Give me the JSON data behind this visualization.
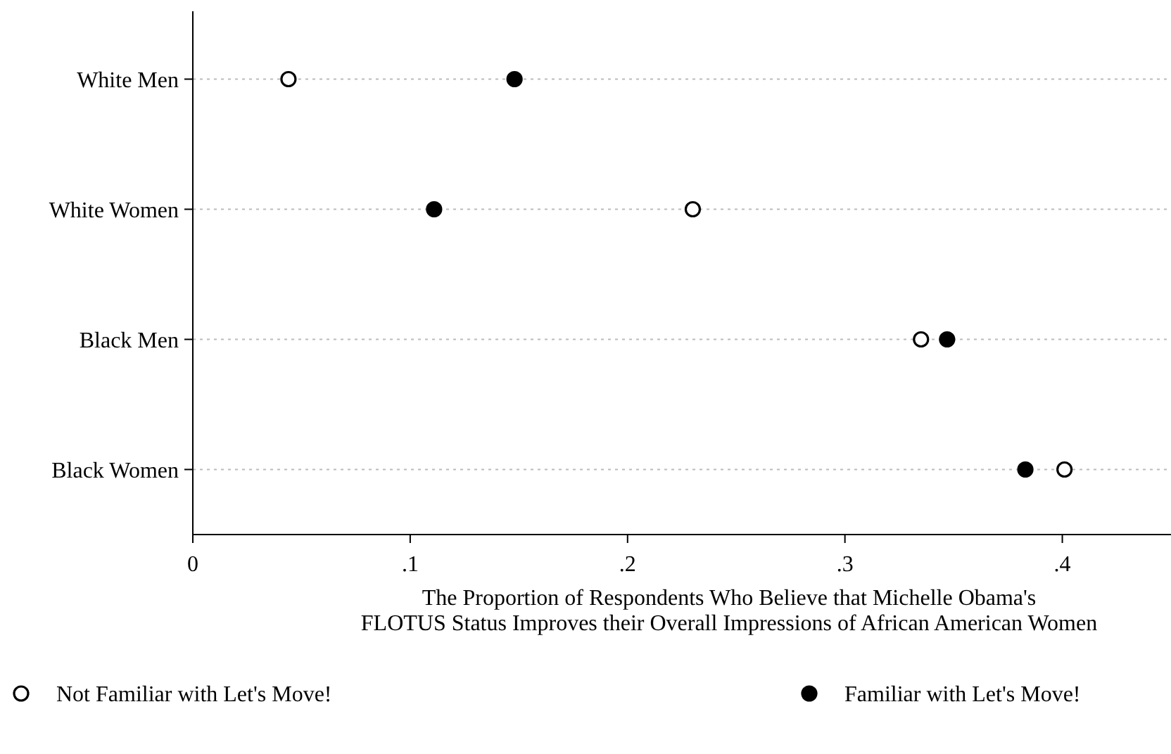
{
  "chart_data": {
    "type": "scatter",
    "orientation": "horizontal",
    "xlabel": "The Proportion of Respondents Who Believe that Michelle Obama's\nFLOTUS Status Improves their Overall Impressions of African American Women",
    "categories": [
      "White Men",
      "White Women",
      "Black Men",
      "Black Women"
    ],
    "series": [
      {
        "name": "Not Familiar with Let's Move!",
        "color": "#ffffff",
        "values": [
          0.044,
          0.23,
          0.335,
          0.401
        ]
      },
      {
        "name": "Familiar with Let's Move!",
        "color": "#000000",
        "values": [
          0.148,
          0.111,
          0.347,
          0.383
        ]
      }
    ],
    "xlim": [
      0,
      0.45
    ],
    "xticks": [
      0,
      {
        "value": 0.1,
        "label": ".1"
      },
      {
        "value": 0.2,
        "label": ".2"
      },
      {
        "value": 0.3,
        "label": ".3"
      },
      {
        "value": 0.4,
        "label": ".4"
      }
    ],
    "grid": "y",
    "legend": "bottom",
    "marker": "circle"
  }
}
